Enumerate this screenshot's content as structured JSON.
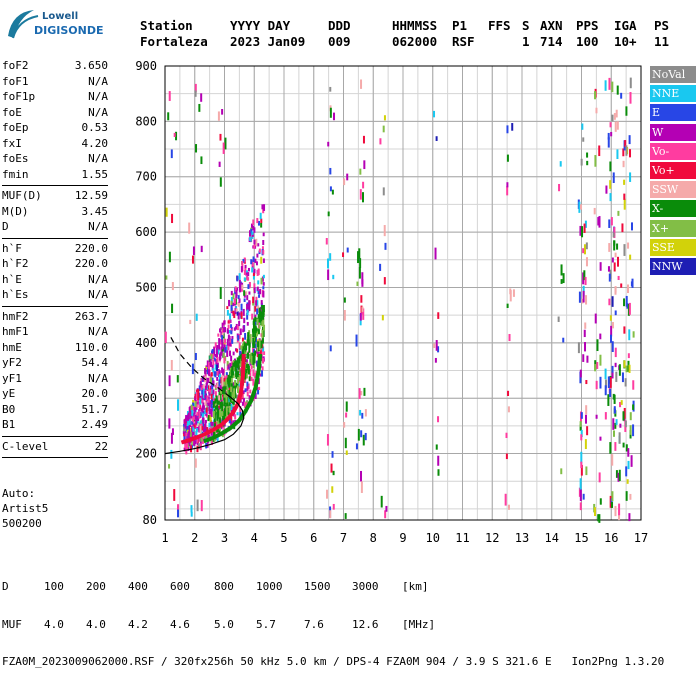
{
  "logo": {
    "line1": "Lowell",
    "line2": "DIGISONDE"
  },
  "header": {
    "labels": [
      "Station",
      "YYYY DAY",
      "DDD",
      "HHMMSS",
      "P1",
      "FFS",
      "S",
      "AXN",
      "PPS",
      "IGA",
      "PS"
    ],
    "values": [
      "Fortaleza",
      "2023 Jan09",
      "009",
      "062000",
      "RSF",
      "",
      "1",
      "714",
      "100",
      "10+",
      "11"
    ]
  },
  "parameters_group1": [
    {
      "name": "foF2",
      "value": "3.650"
    },
    {
      "name": "foF1",
      "value": "N/A"
    },
    {
      "name": "foF1p",
      "value": "N/A"
    },
    {
      "name": "foE",
      "value": "N/A"
    },
    {
      "name": "foEp",
      "value": "0.53"
    },
    {
      "name": "fxI",
      "value": "4.20"
    },
    {
      "name": "foEs",
      "value": "N/A"
    },
    {
      "name": "fmin",
      "value": "1.55"
    }
  ],
  "parameters_group2": [
    {
      "name": "MUF(D)",
      "value": "12.59"
    },
    {
      "name": "M(D)",
      "value": "3.45"
    },
    {
      "name": "D",
      "value": "N/A"
    }
  ],
  "parameters_group3": [
    {
      "name": "h`F",
      "value": "220.0"
    },
    {
      "name": "h`F2",
      "value": "220.0"
    },
    {
      "name": "h`E",
      "value": "N/A"
    },
    {
      "name": "h`Es",
      "value": "N/A"
    }
  ],
  "parameters_group4": [
    {
      "name": "hmF2",
      "value": "263.7"
    },
    {
      "name": "hmF1",
      "value": "N/A"
    },
    {
      "name": "hmE",
      "value": "110.0"
    },
    {
      "name": "yF2",
      "value": "54.4"
    },
    {
      "name": "yF1",
      "value": "N/A"
    },
    {
      "name": "yE",
      "value": "20.0"
    },
    {
      "name": "B0",
      "value": "51.7"
    },
    {
      "name": "B1",
      "value": "2.49"
    }
  ],
  "parameters_group5": [
    {
      "name": "C-level",
      "value": "22"
    }
  ],
  "auto": {
    "label": "Auto:",
    "software": "Artist5",
    "version": "500200"
  },
  "legend": [
    {
      "label": "NoVal",
      "color": "#8c8c8c"
    },
    {
      "label": "NNE",
      "color": "#19c8f0"
    },
    {
      "label": "E",
      "color": "#2846e6"
    },
    {
      "label": "W",
      "color": "#b400b4"
    },
    {
      "label": "Vo-",
      "color": "#ff3ca0"
    },
    {
      "label": "Vo+",
      "color": "#f00a3c"
    },
    {
      "label": "SSW",
      "color": "#f5aaaa"
    },
    {
      "label": "X-",
      "color": "#0a8c0a"
    },
    {
      "label": "X+",
      "color": "#82be46"
    },
    {
      "label": "SSE",
      "color": "#d2d20a"
    },
    {
      "label": "NNW",
      "color": "#1e1eb4"
    }
  ],
  "footer": {
    "d_label": "D",
    "d_values": [
      "100",
      "200",
      "400",
      "600",
      "800",
      "1000",
      "1500",
      "3000"
    ],
    "d_unit": "[km]",
    "muf_label": "MUF",
    "muf_values": [
      "4.0",
      "4.0",
      "4.2",
      "4.6",
      "5.0",
      "5.7",
      "7.6",
      "12.6"
    ],
    "muf_unit": "[MHz]",
    "info": "FZA0M_2023009062000.RSF / 320fx256h 50 kHz 5.0 km / DPS-4 FZA0M 904 / 3.9 S 321.6 E   Ion2Png 1.3.20"
  },
  "chart_data": {
    "type": "scatter",
    "xlim": [
      1,
      17
    ],
    "ylim": [
      80,
      900
    ],
    "x_ticks": [
      1,
      2,
      3,
      4,
      5,
      6,
      7,
      8,
      9,
      10,
      11,
      12,
      13,
      14,
      15,
      16,
      17
    ],
    "y_ticks": [
      80,
      200,
      300,
      400,
      500,
      600,
      700,
      800,
      900
    ],
    "x_minor_step": 0.5,
    "y_minor_step": 50,
    "grid": true,
    "legend_position": "right",
    "o_trace_color": "#f00a3c",
    "x_trace_color": "#0a8c0a",
    "profile_color": "#000000",
    "o_trace": [
      [
        1.55,
        220
      ],
      [
        1.8,
        224
      ],
      [
        2.0,
        228
      ],
      [
        2.3,
        234
      ],
      [
        2.6,
        242
      ],
      [
        2.9,
        252
      ],
      [
        3.1,
        262
      ],
      [
        3.3,
        275
      ],
      [
        3.45,
        290
      ],
      [
        3.55,
        310
      ],
      [
        3.62,
        340
      ],
      [
        3.65,
        380
      ]
    ],
    "x_trace": [
      [
        2.3,
        222
      ],
      [
        2.6,
        228
      ],
      [
        2.9,
        236
      ],
      [
        3.2,
        246
      ],
      [
        3.5,
        260
      ],
      [
        3.7,
        276
      ],
      [
        3.9,
        296
      ],
      [
        4.05,
        320
      ],
      [
        4.15,
        350
      ],
      [
        4.2,
        380
      ]
    ],
    "profile_solid": [
      [
        1.0,
        200
      ],
      [
        1.5,
        204
      ],
      [
        2.0,
        209
      ],
      [
        2.5,
        216
      ],
      [
        3.0,
        225
      ],
      [
        3.3,
        235
      ],
      [
        3.55,
        250
      ],
      [
        3.65,
        264
      ],
      [
        3.6,
        278
      ],
      [
        3.45,
        290
      ],
      [
        3.2,
        302
      ]
    ],
    "profile_dashed": [
      [
        3.2,
        302
      ],
      [
        2.8,
        318
      ],
      [
        2.3,
        336
      ],
      [
        1.9,
        355
      ],
      [
        1.5,
        380
      ],
      [
        1.2,
        410
      ]
    ]
  }
}
